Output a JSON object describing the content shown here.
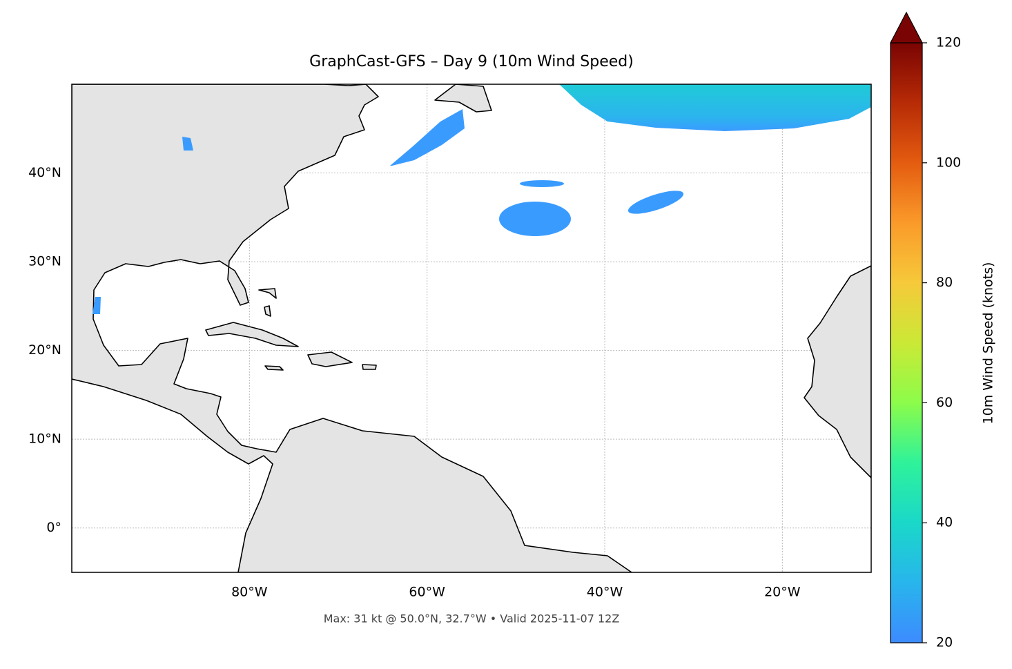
{
  "chart_data": {
    "type": "map",
    "title": "GraphCast-GFS – Day 9 (10m Wind Speed)",
    "caption": "Max: 31 kt @ 50.0°N, 32.7°W • Valid 2025-11-07 12Z",
    "xlim": [
      -100,
      -10
    ],
    "ylim": [
      -5,
      50
    ],
    "xticks": [
      {
        "value": -80,
        "label": "80°W"
      },
      {
        "value": -60,
        "label": "60°W"
      },
      {
        "value": -40,
        "label": "40°W"
      },
      {
        "value": -20,
        "label": "20°W"
      }
    ],
    "yticks": [
      {
        "value": 0,
        "label": "0°"
      },
      {
        "value": 10,
        "label": "10°N"
      },
      {
        "value": 20,
        "label": "20°N"
      },
      {
        "value": 30,
        "label": "30°N"
      },
      {
        "value": 40,
        "label": "40°N"
      }
    ],
    "grid": true,
    "colorbar": {
      "label": "10m Wind Speed (knots)",
      "lim": [
        20,
        120
      ],
      "ticks": [
        20,
        40,
        60,
        80,
        100,
        120
      ],
      "extend": "max"
    }
  }
}
